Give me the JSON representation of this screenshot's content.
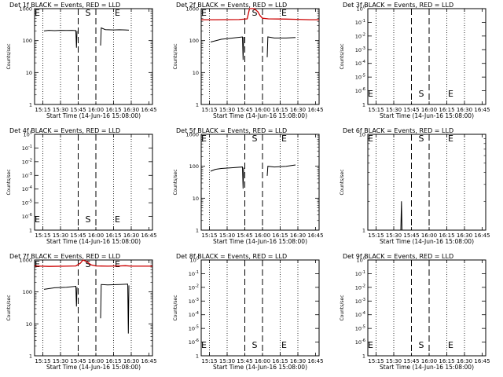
{
  "figure": {
    "xlabel_text": "Start Time (14-Jun-16 15:08:00)",
    "ylabel": "Counts/sec",
    "x_ticks": [
      "15:15",
      "15:30",
      "15:45",
      "16:00",
      "16:15",
      "16:30",
      "16:45"
    ],
    "dotted_lines": [
      "15:15",
      "15:30",
      "16:15",
      "16:30"
    ],
    "dashed_lines": [
      "15:45",
      "16:00"
    ],
    "markers": {
      "E": "E",
      "S": "S"
    },
    "colors": {
      "events": "#000000",
      "lld": "#cc0000"
    }
  },
  "chart_data": [
    {
      "type": "line",
      "title": "Det 1f BLACK = Events, RED = LLD",
      "xlim": [
        "15:08",
        "16:48"
      ],
      "ylim": [
        1,
        1000
      ],
      "yscale": "log",
      "yticks": [
        "1",
        "10",
        "100",
        "1000"
      ],
      "marker_pos": {
        "E1": "15:08",
        "S": "15:51",
        "E2": "16:16"
      },
      "series": [
        {
          "color": "events",
          "points": [
            [
              "15:16",
              200
            ],
            [
              "15:20",
              210
            ],
            [
              "15:25",
              205
            ],
            [
              "15:30",
              210
            ],
            [
              "15:35",
              208
            ],
            [
              "15:40",
              210
            ],
            [
              "15:43",
              205
            ],
            [
              "15:43.5",
              60
            ],
            [
              "15:44",
              200
            ]
          ]
        },
        {
          "color": "events",
          "points": [
            [
              "16:04",
              70
            ],
            [
              "16:04.5",
              250
            ],
            [
              "16:08",
              220
            ],
            [
              "16:15",
              215
            ],
            [
              "16:20",
              218
            ],
            [
              "16:25",
              215
            ],
            [
              "16:28",
              212
            ]
          ]
        }
      ]
    },
    {
      "type": "line",
      "title": "Det 2f BLACK = Events, RED = LLD",
      "xlim": [
        "15:08",
        "16:48"
      ],
      "ylim": [
        1,
        1000
      ],
      "yscale": "log",
      "yticks": [
        "1",
        "10",
        "100",
        "1000"
      ],
      "marker_pos": {
        "E1": "15:08",
        "S": "15:51",
        "E2": "16:16"
      },
      "series": [
        {
          "color": "lld",
          "points": [
            [
              "15:08",
              450
            ],
            [
              "15:20",
              450
            ],
            [
              "15:40",
              455
            ],
            [
              "15:47",
              480
            ],
            [
              "15:49",
              1000
            ],
            [
              "15:53",
              1000
            ],
            [
              "15:56",
              800
            ],
            [
              "15:58",
              600
            ],
            [
              "16:00",
              500
            ],
            [
              "16:05",
              480
            ],
            [
              "16:20",
              470
            ],
            [
              "16:40",
              450
            ],
            [
              "16:48",
              450
            ]
          ]
        },
        {
          "color": "events",
          "points": [
            [
              "15:16",
              90
            ],
            [
              "15:25",
              110
            ],
            [
              "15:35",
              120
            ],
            [
              "15:43",
              130
            ],
            [
              "15:43.5",
              25
            ],
            [
              "15:44",
              130
            ]
          ]
        },
        {
          "color": "events",
          "points": [
            [
              "16:04",
              30
            ],
            [
              "16:04.5",
              130
            ],
            [
              "16:10",
              120
            ],
            [
              "16:20",
              120
            ],
            [
              "16:28",
              125
            ]
          ]
        }
      ]
    },
    {
      "type": "line",
      "title": "Det 3f BLACK = Events, RED = LLD",
      "xlim": [
        "15:08",
        "16:48"
      ],
      "ylim": [
        1,
        1.00002
      ],
      "yscale": "log",
      "yticks": [
        "1",
        "10^-6",
        "10^-5",
        "10^-4",
        "10^-3",
        "10^-2",
        "10^-1",
        "10^0"
      ],
      "marker_pos": {
        "E1": "15:08",
        "S": "15:51",
        "E2": "16:16"
      },
      "series": []
    },
    {
      "type": "line",
      "title": "Det 4f BLACK = Events, RED = LLD",
      "xlim": [
        "15:08",
        "16:48"
      ],
      "ylim": [
        1,
        1.00002
      ],
      "yscale": "log",
      "yticks": [
        "1",
        "10^-6",
        "10^-5",
        "10^-4",
        "10^-3",
        "10^-2",
        "10^-1",
        "10^0"
      ],
      "marker_pos": {
        "E1": "15:08",
        "S": "15:51",
        "E2": "16:16"
      },
      "series": []
    },
    {
      "type": "line",
      "title": "Det 5f BLACK = Events, RED = LLD",
      "xlim": [
        "15:08",
        "16:48"
      ],
      "ylim": [
        1,
        1000
      ],
      "yscale": "log",
      "yticks": [
        "1",
        "10",
        "100",
        "1000"
      ],
      "marker_pos": {
        "E1": "15:08",
        "S": "15:51",
        "E2": "16:16"
      },
      "series": [
        {
          "color": "events",
          "points": [
            [
              "15:16",
              70
            ],
            [
              "15:20",
              80
            ],
            [
              "15:25",
              85
            ],
            [
              "15:35",
              90
            ],
            [
              "15:43",
              95
            ],
            [
              "15:43.5",
              20
            ],
            [
              "15:44",
              90
            ]
          ]
        },
        {
          "color": "events",
          "points": [
            [
              "16:04",
              50
            ],
            [
              "16:04.5",
              100
            ],
            [
              "16:10",
              95
            ],
            [
              "16:20",
              100
            ],
            [
              "16:28",
              110
            ]
          ]
        }
      ]
    },
    {
      "type": "line",
      "title": "Det 6f BLACK = Events, RED = LLD",
      "xlim": [
        "15:08",
        "16:48"
      ],
      "ylim": [
        1,
        10
      ],
      "yscale": "log",
      "yticks": [
        "1",
        "10"
      ],
      "marker_pos": {
        "E1": "15:08",
        "S": "15:51",
        "E2": "16:16"
      },
      "series": [
        {
          "color": "events",
          "points": [
            [
              "15:36",
              1
            ],
            [
              "15:36.5",
              2
            ],
            [
              "15:37",
              1
            ]
          ]
        }
      ]
    },
    {
      "type": "line",
      "title": "Det 7f BLACK = Events, RED = LLD",
      "xlim": [
        "15:08",
        "16:48"
      ],
      "ylim": [
        1,
        1000
      ],
      "yscale": "log",
      "yticks": [
        "1",
        "10",
        "100",
        "1000"
      ],
      "marker_pos": {
        "E1": "15:08",
        "S": "15:51",
        "E2": "16:16"
      },
      "series": [
        {
          "color": "lld",
          "points": [
            [
              "15:08",
              650
            ],
            [
              "15:20",
              630
            ],
            [
              "15:35",
              640
            ],
            [
              "15:43",
              650
            ],
            [
              "15:47",
              800
            ],
            [
              "15:49",
              1000
            ],
            [
              "15:52",
              900
            ],
            [
              "15:56",
              700
            ],
            [
              "16:00",
              650
            ],
            [
              "16:10",
              640
            ],
            [
              "16:20",
              650
            ],
            [
              "16:25",
              660
            ],
            [
              "16:30",
              640
            ],
            [
              "16:48",
              640
            ]
          ]
        },
        {
          "color": "events",
          "points": [
            [
              "15:16",
              120
            ],
            [
              "15:25",
              135
            ],
            [
              "15:35",
              140
            ],
            [
              "15:43",
              150
            ],
            [
              "15:43.5",
              35
            ],
            [
              "15:44",
              140
            ]
          ]
        },
        {
          "color": "events",
          "points": [
            [
              "16:04",
              15
            ],
            [
              "16:04.5",
              170
            ],
            [
              "16:10",
              165
            ],
            [
              "16:20",
              170
            ],
            [
              "16:27",
              175
            ],
            [
              "16:27.5",
              5
            ],
            [
              "16:28",
              160
            ]
          ]
        }
      ]
    },
    {
      "type": "line",
      "title": "Det 8f BLACK = Events, RED = LLD",
      "xlim": [
        "15:08",
        "16:48"
      ],
      "ylim": [
        1,
        1.00002
      ],
      "yscale": "log",
      "yticks": [
        "1",
        "10^-6",
        "10^-5",
        "10^-4",
        "10^-3",
        "10^-2",
        "10^-1",
        "10^0"
      ],
      "marker_pos": {
        "E1": "15:08",
        "S": "15:51",
        "E2": "16:16"
      },
      "series": []
    },
    {
      "type": "line",
      "title": "Det 9f BLACK = Events, RED = LLD",
      "xlim": [
        "15:08",
        "16:48"
      ],
      "ylim": [
        1,
        1.00002
      ],
      "yscale": "log",
      "yticks": [
        "1",
        "10^-6",
        "10^-5",
        "10^-4",
        "10^-3",
        "10^-2",
        "10^-1",
        "10^0"
      ],
      "marker_pos": {
        "E1": "15:08",
        "S": "15:51",
        "E2": "16:16"
      },
      "series": []
    }
  ]
}
